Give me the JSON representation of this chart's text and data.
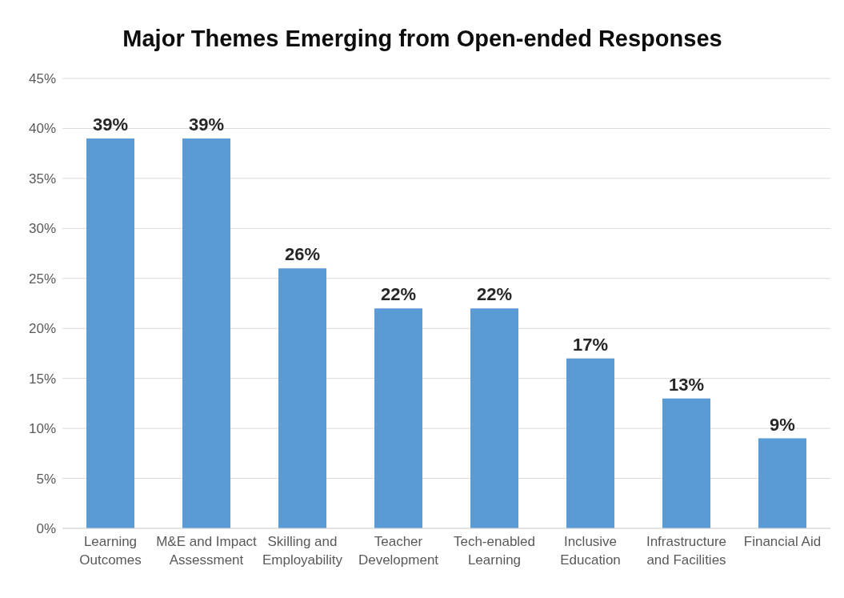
{
  "chart_data": {
    "type": "bar",
    "title": "Major Themes Emerging from Open-ended Responses",
    "categories": [
      "Learning Outcomes",
      "M&E and Impact Assessment",
      "Skilling and Employability",
      "Teacher Development",
      "Tech-enabled Learning",
      "Inclusive Education",
      "Infrastructure and Facilities",
      "Financial Aid"
    ],
    "values": [
      39,
      39,
      26,
      22,
      22,
      17,
      13,
      9
    ],
    "value_labels": [
      "39%",
      "39%",
      "26%",
      "22%",
      "22%",
      "17%",
      "13%",
      "9%"
    ],
    "color": "#5b9bd5",
    "ylim": [
      0,
      45
    ],
    "yticks": [
      {
        "value": 0,
        "label": "0%"
      },
      {
        "value": 5,
        "label": "5%"
      },
      {
        "value": 10,
        "label": "10%"
      },
      {
        "value": 15,
        "label": "15%"
      },
      {
        "value": 20,
        "label": "20%"
      },
      {
        "value": 25,
        "label": "25%"
      },
      {
        "value": 30,
        "label": "30%"
      },
      {
        "value": 35,
        "label": "35%"
      },
      {
        "value": 40,
        "label": "40%"
      },
      {
        "value": 45,
        "label": "45%"
      }
    ],
    "grid": "y",
    "legend": false
  }
}
